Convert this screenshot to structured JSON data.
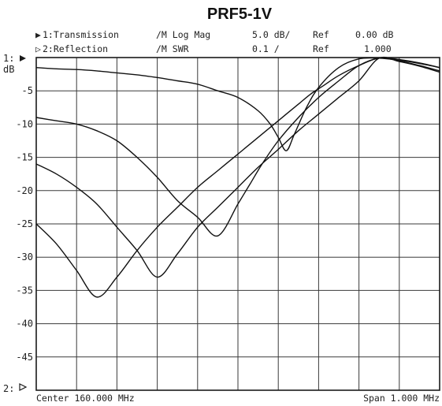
{
  "chart_data": {
    "type": "line",
    "title": "PRF5-1V",
    "header": {
      "ch1": {
        "marker": "▶",
        "label": "1:Transmission",
        "format": "/M Log Mag",
        "scale": "5.0 dB/",
        "ref_label": "Ref",
        "ref_value": "0.00 dB"
      },
      "ch2": {
        "marker": "▷",
        "label": "2:Reflection",
        "format": "/M SWR",
        "scale": "0.1 /",
        "ref_label": "Ref",
        "ref_value": "1.000"
      }
    },
    "ch1_ref_label": "1:",
    "ch2_ref_label": "2:",
    "ylabel": "dB",
    "yticks": [
      "-5",
      "-10",
      "-15",
      "-20",
      "-25",
      "-30",
      "-35",
      "-40",
      "-45"
    ],
    "ylim": [
      -50,
      0
    ],
    "xlim": [
      159.5,
      160.5
    ],
    "center_label": "Center 160.000 MHz",
    "span_label": "Span 1.000 MHz",
    "grid": true,
    "series": [
      {
        "x": [
          159.5,
          159.55,
          159.6,
          159.65,
          159.7,
          159.75,
          159.8,
          159.85,
          159.9,
          159.95,
          160.0,
          160.03,
          160.06,
          160.09,
          160.12,
          160.15,
          160.18,
          160.21,
          160.25,
          160.3,
          160.35,
          160.4,
          160.45,
          160.5
        ],
        "values": [
          -25,
          -28,
          -32,
          -36,
          -33,
          -29,
          -25.5,
          -22.5,
          -19.5,
          -17,
          -14.5,
          -13,
          -11.5,
          -10,
          -8.5,
          -7,
          -5.5,
          -4.3,
          -2.7,
          -1.2,
          -0.1,
          -0.5,
          -1.2,
          -2
        ]
      },
      {
        "x": [
          159.5,
          159.55,
          159.6,
          159.65,
          159.7,
          159.75,
          159.8,
          159.85,
          159.9,
          159.95,
          160.0,
          160.05,
          160.1,
          160.15,
          160.2,
          160.25,
          160.3,
          160.35,
          160.4,
          160.45,
          160.5
        ],
        "values": [
          -16,
          -17.5,
          -19.5,
          -22,
          -25.5,
          -29,
          -33,
          -29.5,
          -25.5,
          -22.5,
          -19.5,
          -16.5,
          -13.8,
          -11,
          -8.5,
          -6,
          -3.5,
          -0.1,
          -0.6,
          -1.3,
          -2.2
        ]
      },
      {
        "x": [
          159.5,
          159.55,
          159.6,
          159.65,
          159.7,
          159.75,
          159.8,
          159.85,
          159.9,
          159.95,
          160.0,
          160.03,
          160.06,
          160.1,
          160.15,
          160.2,
          160.25,
          160.3,
          160.35,
          160.4,
          160.45,
          160.5
        ],
        "values": [
          -9,
          -9.5,
          -10,
          -11,
          -12.5,
          -15,
          -18,
          -21.5,
          -24,
          -26.8,
          -22,
          -19,
          -16,
          -12.5,
          -9,
          -6,
          -3.5,
          -1.2,
          -0.1,
          -0.3,
          -0.8,
          -1.5
        ]
      },
      {
        "x": [
          159.5,
          159.55,
          159.6,
          159.65,
          159.7,
          159.75,
          159.8,
          159.85,
          159.9,
          159.95,
          160.0,
          160.05,
          160.08,
          160.1,
          160.12,
          160.14,
          160.17,
          160.2,
          160.25,
          160.3,
          160.35,
          160.4,
          160.45,
          160.5
        ],
        "values": [
          -1.5,
          -1.7,
          -1.8,
          -2,
          -2.3,
          -2.6,
          -3,
          -3.5,
          -4,
          -5,
          -6,
          -8,
          -10,
          -12,
          -14,
          -11.5,
          -7.5,
          -4.5,
          -1.5,
          -0.2,
          -0.1,
          -0.4,
          -0.9,
          -1.5
        ]
      }
    ]
  }
}
